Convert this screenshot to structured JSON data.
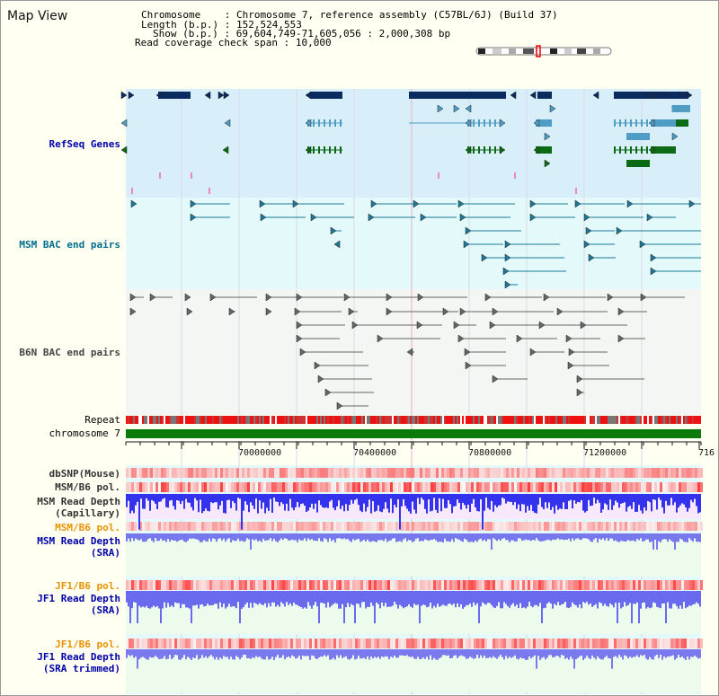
{
  "title": "Map View",
  "info": {
    "chromosome_key": "Chromosome",
    "chromosome_val": "Chromosome 7, reference assembly (C57BL/6J) (Build 37)",
    "length_key": "Length (b.p.)",
    "length_val": "152,524,553",
    "show_key": "Show (b.p.)",
    "show_val": "69,604,749-71,605,056 : 2,000,308 bp",
    "coverage_key": "Read coverage check span",
    "coverage_val": "10,000"
  },
  "tracks": {
    "refseq": "RefSeq Genes",
    "msm_bac": "MSM BAC end pairs",
    "b6n_bac": "B6N BAC end pairs",
    "repeat": "Repeat",
    "chromosome": "chromosome 7",
    "dbsnp": "dbSNP(Mouse)",
    "msm_b6_pol_1": "MSM/B6 pol.",
    "msm_read_cap_1": "MSM Read Depth",
    "msm_read_cap_2": "(Capillary)",
    "msm_b6_pol_2": "MSM/B6 pol.",
    "msm_read_sra_1": "MSM Read Depth",
    "msm_read_sra_2": "(SRA)",
    "jf1_b6_pol_1": "JF1/B6 pol.",
    "jf1_read_sra_1": "JF1 Read Depth",
    "jf1_read_sra_2": "(SRA)",
    "jf1_b6_pol_2": "JF1/B6 pol.",
    "jf1_read_trim_1": "JF1 Read Depth",
    "jf1_read_trim_2": "(SRA trimmed)"
  },
  "axis": {
    "ticks": [
      "70000000",
      "70400000",
      "70800000",
      "71200000",
      "716"
    ]
  },
  "colors": {
    "refseq_bg": "#d8eef8",
    "bac_bg": "#e4fafa",
    "gene_navy": "#0a2b60",
    "gene_light": "#4f9cc4",
    "gene_green": "#0a6b14",
    "bac_teal": "#1b7896",
    "bac_gray": "#666666",
    "chrom_green": "#0a7a0a"
  }
}
